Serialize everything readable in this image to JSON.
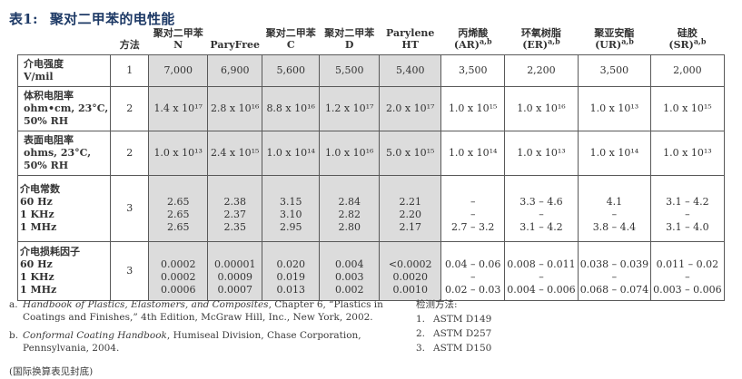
{
  "title": {
    "prefix": "表1:",
    "text": "聚对二甲苯的电性能"
  },
  "table": {
    "method_header": "方法",
    "columns": [
      {
        "lines": [
          "聚对二甲苯 N"
        ],
        "shaded": true
      },
      {
        "lines": [
          "ParyFree"
        ],
        "shaded": true
      },
      {
        "lines": [
          "聚对二甲苯 C"
        ],
        "shaded": true
      },
      {
        "lines": [
          "聚对二甲苯 D"
        ],
        "shaded": true
      },
      {
        "lines": [
          "Parylene HT"
        ],
        "shaded": true
      },
      {
        "lines": [
          "丙烯酸",
          "(AR)"
        ],
        "sup": "a,b",
        "shaded": false
      },
      {
        "lines": [
          "环氧树脂",
          "(ER)"
        ],
        "sup": "a,b",
        "shaded": false
      },
      {
        "lines": [
          "聚亚安酯",
          "(UR)"
        ],
        "sup": "a,b",
        "shaded": false
      },
      {
        "lines": [
          "硅胶",
          "(SR)"
        ],
        "sup": "a,b",
        "shaded": false
      }
    ],
    "rows": [
      {
        "label_lines": [
          "介电强度",
          "V/mil"
        ],
        "method": "1",
        "cells": [
          [
            "7,000"
          ],
          [
            "6,900"
          ],
          [
            "5,600"
          ],
          [
            "5,500"
          ],
          [
            "5,400"
          ],
          [
            "3,500"
          ],
          [
            "2,200"
          ],
          [
            "3,500"
          ],
          [
            "2,000"
          ]
        ]
      },
      {
        "label_lines": [
          "体积电阻率",
          "ohm•cm, 23°C,",
          "50% RH"
        ],
        "method": "2",
        "cells": [
          [
            "1.4 x 10¹⁷"
          ],
          [
            "2.8 x 10¹⁶"
          ],
          [
            "8.8 x 10¹⁶"
          ],
          [
            "1.2 x 10¹⁷"
          ],
          [
            "2.0 x 10¹⁷"
          ],
          [
            "1.0 x 10¹⁵"
          ],
          [
            "1.0 x 10¹⁶"
          ],
          [
            "1.0 x 10¹³"
          ],
          [
            "1.0 x 10¹⁵"
          ]
        ]
      },
      {
        "label_lines": [
          "表面电阻率",
          "ohms, 23°C,",
          "50% RH"
        ],
        "method": "2",
        "cells": [
          [
            "1.0 x 10¹³"
          ],
          [
            "2.4 x 10¹⁵"
          ],
          [
            "1.0 x 10¹⁴"
          ],
          [
            "1.0 x 10¹⁶"
          ],
          [
            "5.0 x 10¹⁵"
          ],
          [
            "1.0 x 10¹⁴"
          ],
          [
            "1.0 x 10¹³"
          ],
          [
            "1.0 x 10¹⁴"
          ],
          [
            "1.0 x 10¹³"
          ]
        ]
      },
      {
        "label_lines": [
          "介电常数",
          "60 Hz",
          "1 KHz",
          "1 MHz"
        ],
        "method": "3",
        "cells": [
          [
            "",
            "2.65",
            "2.65",
            "2.65"
          ],
          [
            "",
            "2.38",
            "2.37",
            "2.35"
          ],
          [
            "",
            "3.15",
            "3.10",
            "2.95"
          ],
          [
            "",
            "2.84",
            "2.82",
            "2.80"
          ],
          [
            "",
            "2.21",
            "2.20",
            "2.17"
          ],
          [
            "",
            "–",
            "–",
            "2.7 – 3.2"
          ],
          [
            "",
            "3.3 – 4.6",
            "–",
            "3.1 – 4.2"
          ],
          [
            "",
            "4.1",
            "–",
            "3.8 – 4.4"
          ],
          [
            "",
            "3.1 – 4.2",
            "–",
            "3.1 – 4.0"
          ]
        ]
      },
      {
        "label_lines": [
          "介电损耗因子",
          "60 Hz",
          "1 KHz",
          "1 MHz"
        ],
        "method": "3",
        "cells": [
          [
            "",
            "0.0002",
            "0.0002",
            "0.0006"
          ],
          [
            "",
            "0.00001",
            "0.0009",
            "0.0007"
          ],
          [
            "",
            "0.020",
            "0.019",
            "0.013"
          ],
          [
            "",
            "0.004",
            "0.003",
            "0.002"
          ],
          [
            "",
            "<0.0002",
            "0.0020",
            "0.0010"
          ],
          [
            "",
            "0.04 – 0.06",
            "–",
            "0.02 – 0.03"
          ],
          [
            "",
            "0.008 – 0.011",
            "–",
            "0.004 – 0.006"
          ],
          [
            "",
            "0.038 – 0.039",
            "–",
            "0.068 – 0.074"
          ],
          [
            "",
            "0.011 – 0.02",
            "–",
            "0.003 – 0.006"
          ]
        ]
      }
    ]
  },
  "footnotes": {
    "a": {
      "marker": "a.",
      "italic": "Handbook of Plastics, Elastomers, and Composites",
      "rest": ", Chapter 6, “Plastics in Coatings and Finishes,” 4th Edition, McGraw Hill, Inc., New York, 2002."
    },
    "b": {
      "marker": "b.",
      "italic": "Conformal Coating Handbook",
      "rest": ", Humiseal Division, Chase Corporation, Pennsylvania, 2004."
    },
    "note": "(国际换算表见封底)",
    "methods_title": "检测方法:",
    "methods": [
      {
        "num": "1.",
        "label": "ASTM D149"
      },
      {
        "num": "2.",
        "label": "ASTM D257"
      },
      {
        "num": "3.",
        "label": "ASTM D150"
      }
    ]
  }
}
